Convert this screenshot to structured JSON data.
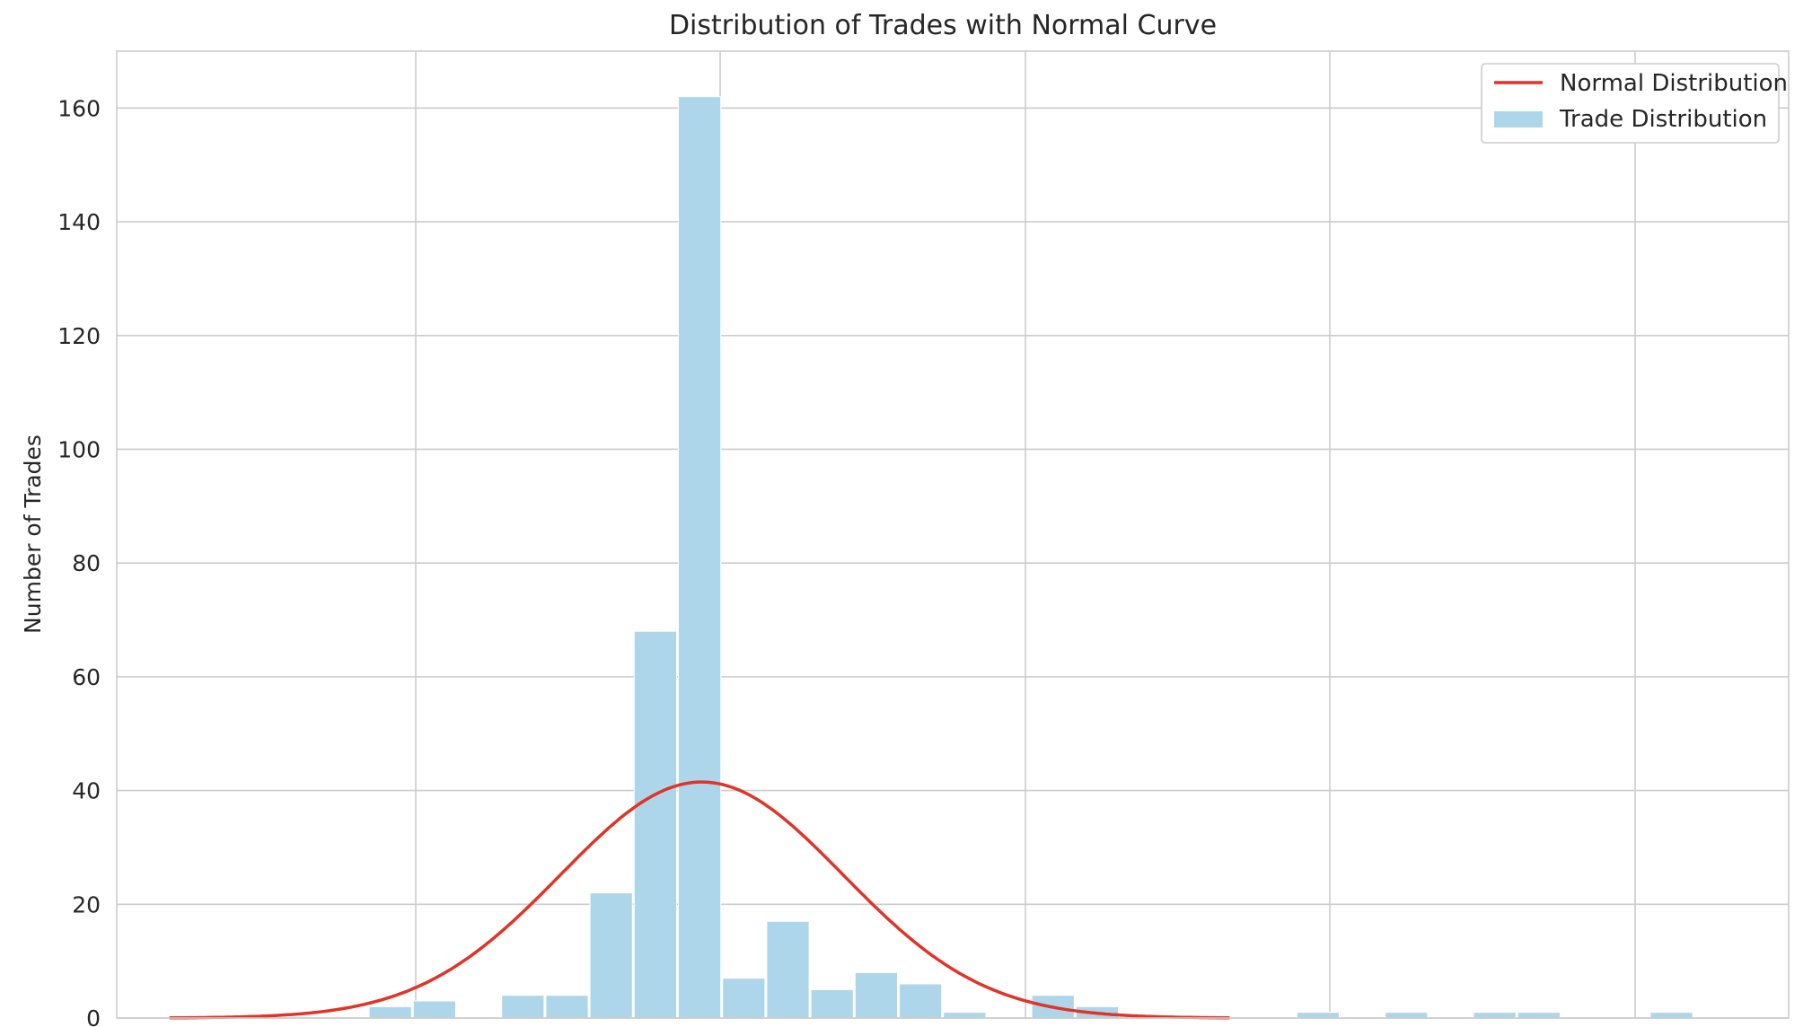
{
  "chart_data": {
    "type": "bar",
    "title": "Distribution of Trades with Normal Curve",
    "xlabel": "",
    "ylabel": "Number of Trades",
    "ylim": [
      0,
      170
    ],
    "y_ticks": [
      0,
      20,
      40,
      60,
      80,
      100,
      120,
      140,
      160
    ],
    "grid": true,
    "legend_position": "top-right",
    "bar_color": "#ADD6EA",
    "curve_color": "#E03427",
    "grid_color": "#CCCCCC",
    "series": [
      {
        "name": "Trade Distribution",
        "type": "histogram",
        "bin_indices": [
          -7,
          -6,
          -4,
          -3,
          -2,
          -1,
          0,
          1,
          2,
          3,
          4,
          5,
          6,
          8,
          9,
          14,
          16,
          18,
          19,
          22
        ],
        "values": [
          2,
          3,
          4,
          4,
          22,
          68,
          162,
          7,
          17,
          5,
          8,
          6,
          1,
          4,
          2,
          1,
          1,
          1,
          1,
          1
        ]
      },
      {
        "name": "Normal Distribution",
        "type": "line",
        "peak": 41.5,
        "peak_bin_position": 0.55,
        "sigma_bins": 3.2,
        "range_bins": [
          -11.5,
          12.5
        ]
      }
    ]
  }
}
